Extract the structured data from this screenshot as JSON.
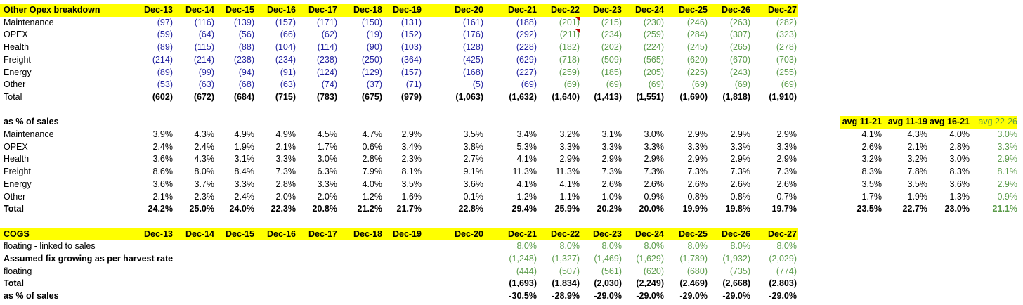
{
  "opex": {
    "title": "Other Opex breakdown",
    "headers": [
      "Dec-13",
      "Dec-14",
      "Dec-15",
      "Dec-16",
      "Dec-17",
      "Dec-18",
      "Dec-19",
      "Dec-20",
      "Dec-21",
      "Dec-22",
      "Dec-23",
      "Dec-24",
      "Dec-25",
      "Dec-26",
      "Dec-27"
    ],
    "rows": [
      {
        "label": "Maintenance",
        "values": [
          "(97)",
          "(116)",
          "(139)",
          "(157)",
          "(171)",
          "(150)",
          "(131)",
          "(161)",
          "(188)",
          "(201)",
          "(215)",
          "(230)",
          "(246)",
          "(263)",
          "(282)"
        ]
      },
      {
        "label": "OPEX",
        "values": [
          "(59)",
          "(64)",
          "(56)",
          "(66)",
          "(62)",
          "(19)",
          "(152)",
          "(176)",
          "(292)",
          "(211)",
          "(234)",
          "(259)",
          "(284)",
          "(307)",
          "(323)"
        ]
      },
      {
        "label": "Health",
        "values": [
          "(89)",
          "(115)",
          "(88)",
          "(104)",
          "(114)",
          "(90)",
          "(103)",
          "(128)",
          "(228)",
          "(182)",
          "(202)",
          "(224)",
          "(245)",
          "(265)",
          "(278)"
        ]
      },
      {
        "label": "Freight",
        "values": [
          "(214)",
          "(214)",
          "(238)",
          "(234)",
          "(238)",
          "(250)",
          "(364)",
          "(425)",
          "(629)",
          "(718)",
          "(509)",
          "(565)",
          "(620)",
          "(670)",
          "(703)"
        ]
      },
      {
        "label": "Energy",
        "values": [
          "(89)",
          "(99)",
          "(94)",
          "(91)",
          "(124)",
          "(129)",
          "(157)",
          "(168)",
          "(227)",
          "(259)",
          "(185)",
          "(205)",
          "(225)",
          "(243)",
          "(255)"
        ]
      },
      {
        "label": "Other",
        "values": [
          "(53)",
          "(63)",
          "(68)",
          "(63)",
          "(74)",
          "(37)",
          "(71)",
          "(5)",
          "(69)",
          "(69)",
          "(69)",
          "(69)",
          "(69)",
          "(69)",
          "(69)"
        ]
      },
      {
        "label": "Total",
        "values": [
          "(602)",
          "(672)",
          "(684)",
          "(715)",
          "(783)",
          "(675)",
          "(979)",
          "(1,063)",
          "(1,632)",
          "(1,640)",
          "(1,413)",
          "(1,551)",
          "(1,690)",
          "(1,818)",
          "(1,910)"
        ]
      }
    ]
  },
  "pct": {
    "title": "as % of sales",
    "avg_headers": [
      "avg 11-21",
      "avg 11-19",
      "avg 16-21",
      "avg 22-26"
    ],
    "rows": [
      {
        "label": "Maintenance",
        "values": [
          "3.9%",
          "4.3%",
          "4.9%",
          "4.9%",
          "4.5%",
          "4.7%",
          "2.9%",
          "3.5%",
          "3.4%",
          "3.2%",
          "3.1%",
          "3.0%",
          "2.9%",
          "2.9%",
          "2.9%"
        ],
        "avgs": [
          "4.1%",
          "4.3%",
          "4.0%",
          "3.0%"
        ]
      },
      {
        "label": "OPEX",
        "values": [
          "2.4%",
          "2.4%",
          "1.9%",
          "2.1%",
          "1.7%",
          "0.6%",
          "3.4%",
          "3.8%",
          "5.3%",
          "3.3%",
          "3.3%",
          "3.3%",
          "3.3%",
          "3.3%",
          "3.3%"
        ],
        "avgs": [
          "2.6%",
          "2.1%",
          "2.8%",
          "3.3%"
        ]
      },
      {
        "label": "Health",
        "values": [
          "3.6%",
          "4.3%",
          "3.1%",
          "3.3%",
          "3.0%",
          "2.8%",
          "2.3%",
          "2.7%",
          "4.1%",
          "2.9%",
          "2.9%",
          "2.9%",
          "2.9%",
          "2.9%",
          "2.9%"
        ],
        "avgs": [
          "3.2%",
          "3.2%",
          "3.0%",
          "2.9%"
        ]
      },
      {
        "label": "Freight",
        "values": [
          "8.6%",
          "8.0%",
          "8.4%",
          "7.3%",
          "6.3%",
          "7.9%",
          "8.1%",
          "9.1%",
          "11.3%",
          "11.3%",
          "7.3%",
          "7.3%",
          "7.3%",
          "7.3%",
          "7.3%"
        ],
        "avgs": [
          "8.3%",
          "7.8%",
          "8.3%",
          "8.1%"
        ]
      },
      {
        "label": "Energy",
        "values": [
          "3.6%",
          "3.7%",
          "3.3%",
          "2.8%",
          "3.3%",
          "4.0%",
          "3.5%",
          "3.6%",
          "4.1%",
          "4.1%",
          "2.6%",
          "2.6%",
          "2.6%",
          "2.6%",
          "2.6%"
        ],
        "avgs": [
          "3.5%",
          "3.5%",
          "3.6%",
          "2.9%"
        ]
      },
      {
        "label": "Other",
        "values": [
          "2.1%",
          "2.3%",
          "2.4%",
          "2.0%",
          "2.0%",
          "1.2%",
          "1.6%",
          "0.1%",
          "1.2%",
          "1.1%",
          "1.0%",
          "0.9%",
          "0.8%",
          "0.8%",
          "0.7%"
        ],
        "avgs": [
          "1.7%",
          "1.9%",
          "1.3%",
          "0.9%"
        ]
      },
      {
        "label": "Total",
        "values": [
          "24.2%",
          "25.0%",
          "24.0%",
          "22.3%",
          "20.8%",
          "21.2%",
          "21.7%",
          "22.8%",
          "29.4%",
          "25.9%",
          "20.2%",
          "20.0%",
          "19.9%",
          "19.8%",
          "19.7%"
        ],
        "avgs": [
          "23.5%",
          "22.7%",
          "23.0%",
          "21.1%"
        ]
      }
    ]
  },
  "cogs": {
    "title": "COGS",
    "headers": [
      "Dec-13",
      "Dec-14",
      "Dec-15",
      "Dec-16",
      "Dec-17",
      "Dec-18",
      "Dec-19",
      "Dec-20",
      "Dec-21",
      "Dec-22",
      "Dec-23",
      "Dec-24",
      "Dec-25",
      "Dec-26",
      "Dec-27"
    ],
    "rows": [
      {
        "label": "floating - linked to sales",
        "values": [
          "",
          "",
          "",
          "",
          "",
          "",
          "",
          "",
          "8.0%",
          "8.0%",
          "8.0%",
          "8.0%",
          "8.0%",
          "8.0%",
          "8.0%"
        ]
      },
      {
        "label": "Assumed fix growing as per harvest rate",
        "values": [
          "",
          "",
          "",
          "",
          "",
          "",
          "",
          "",
          "(1,248)",
          "(1,327)",
          "(1,469)",
          "(1,629)",
          "(1,789)",
          "(1,932)",
          "(2,029)"
        ]
      },
      {
        "label": "floating",
        "values": [
          "",
          "",
          "",
          "",
          "",
          "",
          "",
          "",
          "(444)",
          "(507)",
          "(561)",
          "(620)",
          "(680)",
          "(735)",
          "(774)"
        ]
      },
      {
        "label": "Total",
        "values": [
          "",
          "",
          "",
          "",
          "",
          "",
          "",
          "",
          "(1,693)",
          "(1,834)",
          "(2,030)",
          "(2,249)",
          "(2,469)",
          "(2,668)",
          "(2,803)"
        ]
      },
      {
        "label": "as % of sales",
        "values": [
          "",
          "",
          "",
          "",
          "",
          "",
          "",
          "",
          "-30.5%",
          "-28.9%",
          "-29.0%",
          "-29.0%",
          "-29.0%",
          "-29.0%",
          "-29.0%"
        ]
      }
    ]
  },
  "colors": {
    "highlight": "#ffff00",
    "input_blue": "#1f1f9e",
    "forecast_green": "#5b9b4a",
    "comment_red": "#c00000"
  }
}
